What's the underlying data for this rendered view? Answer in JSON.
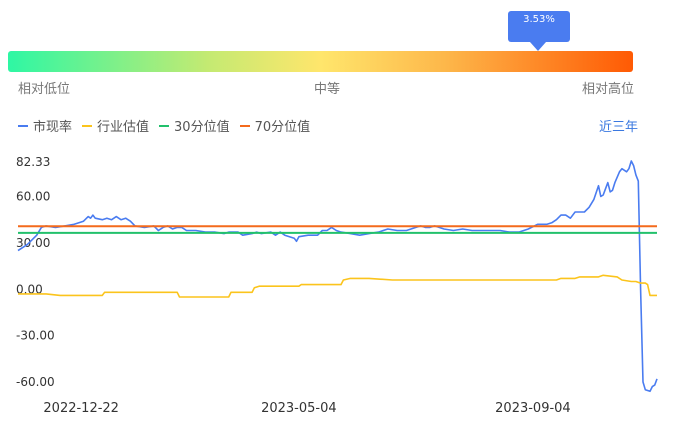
{
  "indicator": {
    "tooltip_value": "3.53%",
    "percentile": 0.853,
    "labels": [
      "相对低位",
      "中等",
      "相对高位"
    ]
  },
  "legend": {
    "items": [
      {
        "label": "市现率",
        "color": "#4a7cf0"
      },
      {
        "label": "行业估值",
        "color": "#fbc41c"
      },
      {
        "label": "30分位值",
        "color": "#22c16c"
      },
      {
        "label": "70分位值",
        "color": "#f46a1c"
      }
    ]
  },
  "period_label": "近三年",
  "chart_data": {
    "type": "line",
    "y_ticks": [
      "82.33",
      "60.00",
      "30.00",
      "0.00",
      "-30.00",
      "-60.00"
    ],
    "y_tick_values": [
      82.33,
      60,
      30,
      0,
      -30,
      -60
    ],
    "ylim": [
      -70,
      85
    ],
    "x_ticks": [
      "2022-12-22",
      "2023-05-04",
      "2023-09-04"
    ],
    "x_tick_indices": [
      27,
      120,
      220
    ],
    "n_points": 273,
    "series": [
      {
        "name": "市现率",
        "color": "#4a7cf0",
        "points": [
          [
            0,
            25
          ],
          [
            4,
            29
          ],
          [
            8,
            35
          ],
          [
            10,
            40
          ],
          [
            12,
            41
          ],
          [
            16,
            40
          ],
          [
            20,
            41
          ],
          [
            24,
            42
          ],
          [
            28,
            44
          ],
          [
            30,
            47
          ],
          [
            31,
            46
          ],
          [
            32,
            48
          ],
          [
            33,
            46
          ],
          [
            36,
            45
          ],
          [
            38,
            46
          ],
          [
            40,
            45
          ],
          [
            42,
            47
          ],
          [
            44,
            45
          ],
          [
            46,
            46
          ],
          [
            48,
            44
          ],
          [
            50,
            41
          ],
          [
            54,
            40
          ],
          [
            58,
            41
          ],
          [
            60,
            38
          ],
          [
            62,
            40
          ],
          [
            64,
            41
          ],
          [
            66,
            39
          ],
          [
            68,
            40
          ],
          [
            70,
            40
          ],
          [
            72,
            38
          ],
          [
            76,
            38
          ],
          [
            80,
            37
          ],
          [
            84,
            37
          ],
          [
            88,
            36
          ],
          [
            90,
            37
          ],
          [
            94,
            37
          ],
          [
            96,
            35
          ],
          [
            100,
            36
          ],
          [
            102,
            37
          ],
          [
            104,
            36
          ],
          [
            108,
            37
          ],
          [
            110,
            35
          ],
          [
            112,
            37
          ],
          [
            114,
            35
          ],
          [
            116,
            34
          ],
          [
            118,
            33
          ],
          [
            119,
            31
          ],
          [
            120,
            34
          ],
          [
            124,
            35
          ],
          [
            128,
            35
          ],
          [
            130,
            38
          ],
          [
            132,
            38
          ],
          [
            134,
            40
          ],
          [
            136,
            38
          ],
          [
            138,
            37
          ],
          [
            142,
            36
          ],
          [
            146,
            35
          ],
          [
            150,
            36
          ],
          [
            154,
            37
          ],
          [
            158,
            39
          ],
          [
            162,
            38
          ],
          [
            166,
            38
          ],
          [
            170,
            40
          ],
          [
            172,
            41
          ],
          [
            174,
            40
          ],
          [
            176,
            40
          ],
          [
            178,
            41
          ],
          [
            182,
            39
          ],
          [
            186,
            38
          ],
          [
            190,
            39
          ],
          [
            194,
            38
          ],
          [
            198,
            38
          ],
          [
            202,
            38
          ],
          [
            206,
            38
          ],
          [
            210,
            37
          ],
          [
            214,
            37
          ],
          [
            218,
            39
          ],
          [
            222,
            42
          ],
          [
            226,
            42
          ],
          [
            228,
            43
          ],
          [
            230,
            45
          ],
          [
            232,
            48
          ],
          [
            234,
            48
          ],
          [
            236,
            46
          ],
          [
            238,
            50
          ],
          [
            240,
            50
          ],
          [
            242,
            50
          ],
          [
            244,
            53
          ],
          [
            246,
            58
          ],
          [
            248,
            67
          ],
          [
            249,
            60
          ],
          [
            250,
            61
          ],
          [
            251,
            65
          ],
          [
            252,
            69
          ],
          [
            253,
            63
          ],
          [
            254,
            64
          ],
          [
            255,
            69
          ],
          [
            257,
            76
          ],
          [
            258,
            78
          ],
          [
            259,
            77
          ],
          [
            260,
            76
          ],
          [
            261,
            78
          ],
          [
            262,
            83
          ],
          [
            263,
            80
          ],
          [
            264,
            74
          ],
          [
            265,
            70
          ],
          [
            266,
            0
          ],
          [
            267,
            -60
          ],
          [
            268,
            -65
          ],
          [
            270,
            -66
          ],
          [
            271,
            -63
          ],
          [
            272,
            -62
          ],
          [
            273,
            -58
          ]
        ]
      },
      {
        "name": "行业估值",
        "color": "#fbc41c",
        "points": [
          [
            0,
            -3
          ],
          [
            12,
            -3
          ],
          [
            18,
            -4
          ],
          [
            36,
            -4
          ],
          [
            37,
            -2
          ],
          [
            68,
            -2
          ],
          [
            69,
            -5
          ],
          [
            90,
            -5
          ],
          [
            91,
            -2
          ],
          [
            100,
            -2
          ],
          [
            101,
            1
          ],
          [
            103,
            2
          ],
          [
            120,
            2
          ],
          [
            121,
            3
          ],
          [
            138,
            3
          ],
          [
            139,
            6
          ],
          [
            142,
            7
          ],
          [
            150,
            7
          ],
          [
            160,
            6
          ],
          [
            180,
            6
          ],
          [
            200,
            6
          ],
          [
            230,
            6
          ],
          [
            232,
            7
          ],
          [
            238,
            7
          ],
          [
            240,
            8
          ],
          [
            248,
            8
          ],
          [
            250,
            9
          ],
          [
            256,
            8
          ],
          [
            258,
            6
          ],
          [
            262,
            5
          ],
          [
            264,
            5
          ],
          [
            266,
            4
          ],
          [
            268,
            4
          ],
          [
            269,
            3
          ],
          [
            270,
            -4
          ],
          [
            273,
            -4
          ]
        ]
      },
      {
        "name": "30分位值",
        "color": "#22c16c",
        "value": 36.5
      },
      {
        "name": "70分位值",
        "color": "#f46a1c",
        "value": 40.8
      }
    ]
  }
}
